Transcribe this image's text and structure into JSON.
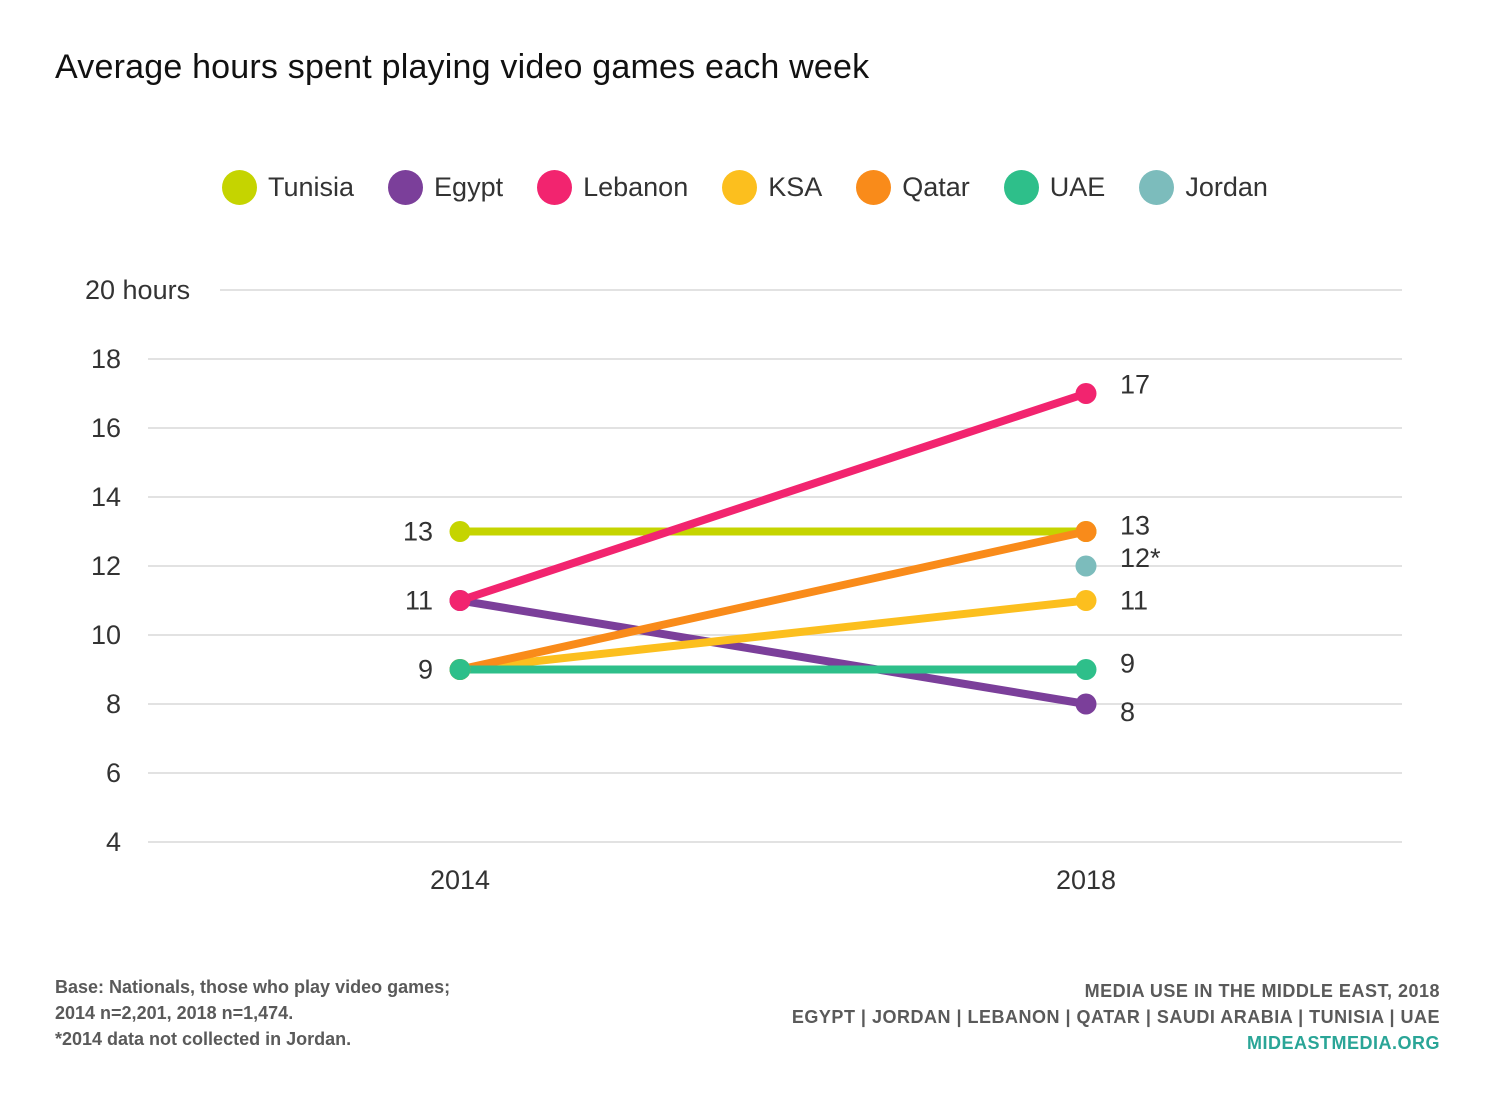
{
  "chart_data": {
    "type": "line",
    "title": "Average hours spent playing video games each week",
    "x": [
      "2014",
      "2018"
    ],
    "ylim": [
      4,
      20
    ],
    "yticks": [
      {
        "value": 4,
        "label": "4"
      },
      {
        "value": 6,
        "label": "6"
      },
      {
        "value": 8,
        "label": "8"
      },
      {
        "value": 10,
        "label": "10"
      },
      {
        "value": 12,
        "label": "12"
      },
      {
        "value": 14,
        "label": "14"
      },
      {
        "value": 16,
        "label": "16"
      },
      {
        "value": 18,
        "label": "18"
      },
      {
        "value": 20,
        "label": "20 hours"
      }
    ],
    "grid": true,
    "legend_position": "top",
    "series": [
      {
        "name": "Tunisia",
        "color": "#c5d400",
        "values": [
          13,
          13
        ]
      },
      {
        "name": "Egypt",
        "color": "#7b3f9a",
        "values": [
          11,
          8
        ]
      },
      {
        "name": "Lebanon",
        "color": "#f2246f",
        "values": [
          11,
          17
        ]
      },
      {
        "name": "KSA",
        "color": "#fcbf1e",
        "values": [
          9,
          11
        ]
      },
      {
        "name": "Qatar",
        "color": "#f98b1a",
        "values": [
          9,
          13
        ]
      },
      {
        "name": "UAE",
        "color": "#2ebf8a",
        "values": [
          9,
          9
        ]
      },
      {
        "name": "Jordan",
        "color": "#7cbcbc",
        "values": [
          null,
          12
        ]
      }
    ],
    "data_labels": [
      {
        "x": "2014",
        "value": 13,
        "text": "13"
      },
      {
        "x": "2014",
        "value": 11,
        "text": "11"
      },
      {
        "x": "2014",
        "value": 9,
        "text": "9"
      },
      {
        "x": "2018",
        "value": 17,
        "text": "17"
      },
      {
        "x": "2018",
        "value": 13,
        "text": "13"
      },
      {
        "x": "2018",
        "value": 12,
        "text": "12*"
      },
      {
        "x": "2018",
        "value": 11,
        "text": "11"
      },
      {
        "x": "2018",
        "value": 9,
        "text": "9"
      },
      {
        "x": "2018",
        "value": 8,
        "text": "8"
      }
    ]
  },
  "footnote": [
    "Base: Nationals, those who play video games;",
    "2014 n=2,201, 2018 n=1,474.",
    "*2014 data not collected in Jordan."
  ],
  "credits": {
    "line1": "MEDIA USE IN THE MIDDLE EAST, 2018",
    "line2": "EGYPT | JORDAN | LEBANON | QATAR | SAUDI ARABIA | TUNISIA | UAE",
    "site": "MIDEASTMEDIA.ORG"
  }
}
